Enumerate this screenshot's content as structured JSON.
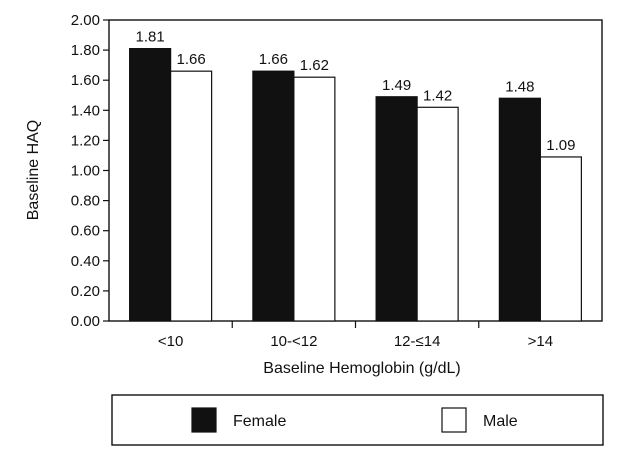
{
  "chart_data": {
    "type": "bar",
    "xlabel": "Baseline Hemoglobin (g/dL)",
    "ylabel": "Baseline HAQ",
    "ylim": [
      0,
      2.0
    ],
    "yticks": [
      "0.00",
      "0.20",
      "0.40",
      "0.60",
      "0.80",
      "1.00",
      "1.20",
      "1.40",
      "1.60",
      "1.80",
      "2.00"
    ],
    "categories": [
      "<10",
      "10-<12",
      "12-≤14",
      ">14"
    ],
    "series": [
      {
        "name": "Female",
        "color": "#111111",
        "values": [
          1.81,
          1.66,
          1.49,
          1.48
        ],
        "labels": [
          "1.81",
          "1.66",
          "1.49",
          "1.48"
        ]
      },
      {
        "name": "Male",
        "color": "#ffffff",
        "values": [
          1.66,
          1.62,
          1.42,
          1.09
        ],
        "labels": [
          "1.66",
          "1.62",
          "1.42",
          "1.09"
        ]
      }
    ],
    "grid": false,
    "legend_position": "bottom"
  }
}
